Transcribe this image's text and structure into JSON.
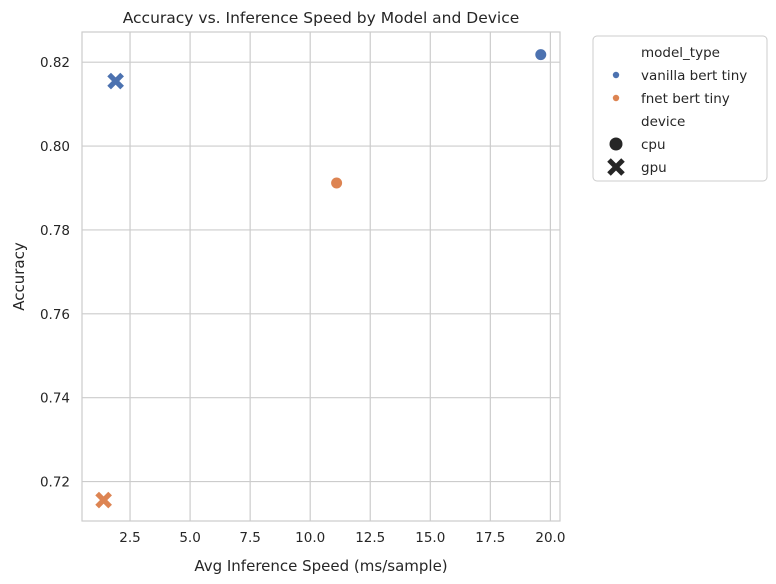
{
  "chart_data": {
    "type": "scatter",
    "title": "Accuracy vs. Inference Speed by Model and Device",
    "xlabel": "Avg Inference Speed (ms/sample)",
    "ylabel": "Accuracy",
    "xlim": [
      0.5,
      20.4
    ],
    "ylim": [
      0.7106,
      0.8272
    ],
    "xticks": [
      2.5,
      5.0,
      7.5,
      10.0,
      12.5,
      15.0,
      17.5,
      20.0
    ],
    "xtick_labels": [
      "2.5",
      "5.0",
      "7.5",
      "10.0",
      "12.5",
      "15.0",
      "17.5",
      "20.0"
    ],
    "yticks": [
      0.72,
      0.74,
      0.76,
      0.78,
      0.8,
      0.82
    ],
    "ytick_labels": [
      "0.72",
      "0.74",
      "0.76",
      "0.78",
      "0.80",
      "0.82"
    ],
    "grid": true,
    "legend_placement": "outside-right-top",
    "legend": {
      "hue_title": "model_type",
      "hue_entries": [
        {
          "label": "vanilla bert tiny",
          "color": "#4c72b0"
        },
        {
          "label": "fnet bert tiny",
          "color": "#dd8452"
        }
      ],
      "style_title": "device",
      "style_entries": [
        {
          "label": "cpu",
          "marker": "circle"
        },
        {
          "label": "gpu",
          "marker": "x"
        }
      ]
    },
    "points": [
      {
        "model_type": "vanilla bert tiny",
        "device": "cpu",
        "x": 19.6,
        "y": 0.8218
      },
      {
        "model_type": "vanilla bert tiny",
        "device": "gpu",
        "x": 1.9,
        "y": 0.8155
      },
      {
        "model_type": "fnet bert tiny",
        "device": "cpu",
        "x": 11.1,
        "y": 0.7912
      },
      {
        "model_type": "fnet bert tiny",
        "device": "gpu",
        "x": 1.4,
        "y": 0.7156
      }
    ]
  }
}
